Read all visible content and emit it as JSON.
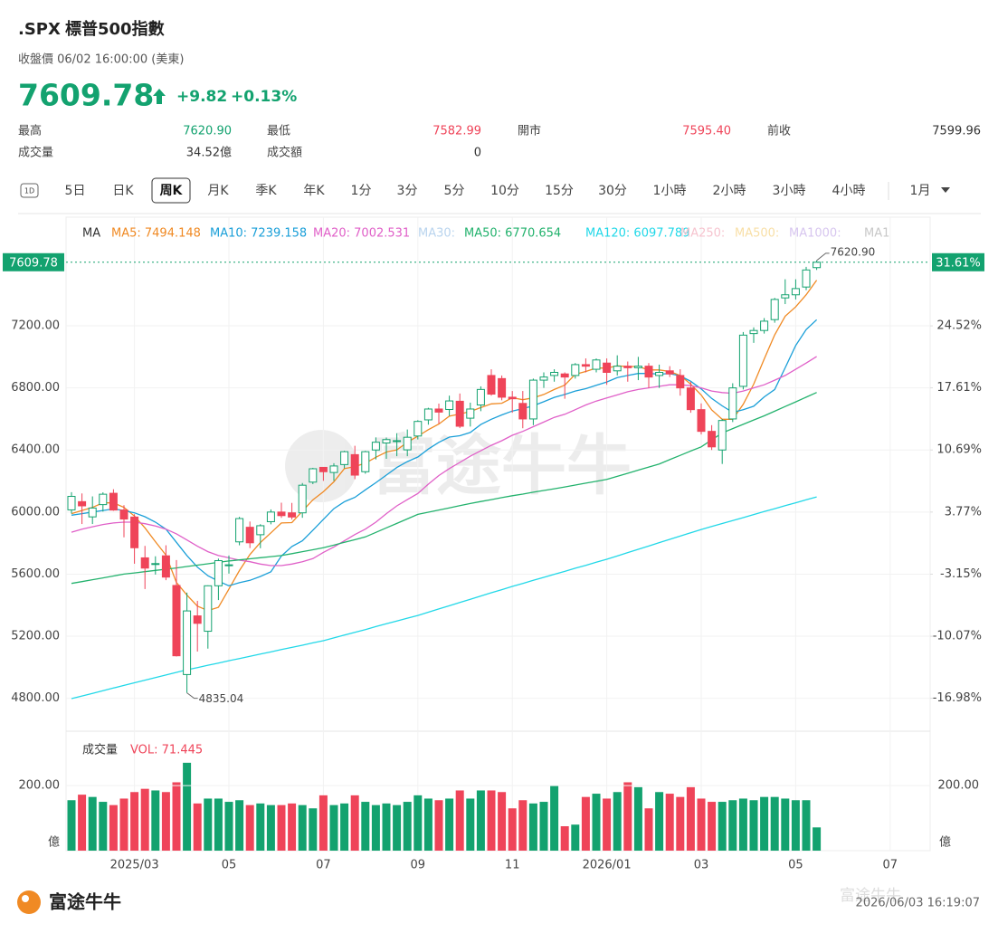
{
  "header": {
    "symbol": ".SPX",
    "name": "標普500指數",
    "status": "收盤價 06/02 16:00:00 (美東)",
    "price": "7609.78",
    "change": "+9.82",
    "change_pct": "+0.13%",
    "color": "#13a26f"
  },
  "stats": [
    {
      "label": "最高",
      "value": "7620.90",
      "color": "#13a26f"
    },
    {
      "label": "最低",
      "value": "7582.99",
      "color": "#ef4459"
    },
    {
      "label": "開市",
      "value": "7595.40",
      "color": "#ef4459"
    },
    {
      "label": "前收",
      "value": "7599.96",
      "color": "#333333"
    },
    {
      "label": "成交量",
      "value": "34.52億",
      "color": "#333333"
    },
    {
      "label": "成交額",
      "value": "0",
      "color": "#333333"
    }
  ],
  "tabs": {
    "icon": "1D",
    "items": [
      "5日",
      "日K",
      "周K",
      "月K",
      "季K",
      "年K",
      "1分",
      "3分",
      "5分",
      "10分",
      "15分",
      "30分",
      "1小時",
      "2小時",
      "3小時",
      "4小時",
      "1月"
    ],
    "selected": 2
  },
  "watermark": "富途牛牛",
  "footer": {
    "brand": "富途牛牛",
    "watermark": "富途牛牛",
    "timestamp": "2026/06/03 16:19:07"
  },
  "chart_data": [
    {
      "type": "candlestick",
      "legend_title": "MA",
      "up_color": "#13a26f",
      "down_color": "#ef4459",
      "categories": [
        null,
        null,
        null,
        null,
        null,
        null,
        "2025/03",
        null,
        null,
        null,
        null,
        null,
        null,
        null,
        null,
        "05",
        null,
        null,
        null,
        null,
        null,
        null,
        null,
        null,
        "07",
        null,
        null,
        null,
        null,
        null,
        null,
        null,
        null,
        "09",
        null,
        null,
        null,
        null,
        null,
        null,
        null,
        null,
        "11",
        null,
        null,
        null,
        null,
        null,
        null,
        null,
        null,
        "2026/01",
        null,
        null,
        null,
        null,
        null,
        null,
        null,
        null,
        "03",
        null,
        null,
        null,
        null,
        null,
        null,
        null,
        null,
        "05",
        null,
        null,
        null,
        null,
        null,
        null,
        null,
        null,
        "07"
      ],
      "open": [
        6014,
        6067,
        5969,
        6048,
        6121,
        6013,
        5968,
        5705,
        5664,
        5718,
        5527,
        4953,
        5331,
        5232,
        5525,
        5655,
        5808,
        5902,
        5854,
        5938,
        6000,
        5995,
        5995,
        6193,
        6288,
        6255,
        6306,
        6370,
        6260,
        6400,
        6445,
        6457,
        6401,
        6490,
        6594,
        6664,
        6661,
        6714,
        6605,
        6690,
        6880,
        6860,
        6740,
        6700,
        6600,
        6850,
        6880,
        6890,
        6880,
        6950,
        6920,
        6960,
        6910,
        6940,
        6930,
        6940,
        6880,
        6910,
        6880,
        6800,
        6660,
        6520,
        6400,
        6600,
        6810,
        7150,
        7170,
        7240,
        7380,
        7400,
        7450,
        7575,
        null,
        null,
        null,
        null,
        null,
        null,
        null
      ],
      "high": [
        6128,
        6120,
        6101,
        6127,
        6147,
        6044,
        5986,
        5782,
        5715,
        5786,
        5691,
        5481,
        5428,
        5528,
        5700,
        5720,
        5969,
        5939,
        5922,
        6017,
        6060,
        6059,
        6187,
        6285,
        6290,
        6315,
        6395,
        6427,
        6395,
        6481,
        6480,
        6508,
        6532,
        6592,
        6672,
        6699,
        6750,
        6764,
        6705,
        6810,
        6920,
        6880,
        6780,
        6780,
        6860,
        6900,
        6920,
        6900,
        6960,
        6990,
        6990,
        6990,
        7010,
        6970,
        7000,
        6960,
        6950,
        6940,
        6920,
        6840,
        6700,
        6560,
        6600,
        6830,
        7160,
        7190,
        7250,
        7380,
        7500,
        7500,
        7580,
        7620.9,
        null,
        null,
        null,
        null,
        null,
        null,
        null
      ],
      "low": [
        5990,
        5923,
        5923,
        6003,
        6008,
        5837,
        5667,
        5504,
        5597,
        5561,
        5069,
        4835.04,
        5101,
        5120,
        5433,
        5603,
        5786,
        5768,
        5767,
        5921,
        5963,
        5952,
        5963,
        6180,
        6201,
        6201,
        6282,
        6212,
        6247,
        6339,
        6343,
        6360,
        6360,
        6468,
        6563,
        6569,
        6620,
        6541,
        6551,
        6650,
        6750,
        6720,
        6640,
        6540,
        6560,
        6800,
        6840,
        6730,
        6860,
        6900,
        6900,
        6820,
        6880,
        6840,
        6850,
        6800,
        6800,
        6870,
        6750,
        6640,
        6500,
        6400,
        6310,
        6580,
        6790,
        7090,
        7150,
        7220,
        7340,
        7370,
        7430,
        7560,
        null,
        null,
        null,
        null,
        null,
        null,
        null
      ],
      "close": [
        6101,
        6040,
        6026,
        6115,
        6013,
        5955,
        5770,
        5639,
        5668,
        5581,
        5074,
        5363,
        5283,
        5525,
        5687,
        5660,
        5958,
        5802,
        5912,
        6000,
        5977,
        5968,
        6173,
        6279,
        6260,
        6297,
        6389,
        6238,
        6389,
        6450,
        6467,
        6460,
        6482,
        6584,
        6664,
        6644,
        6716,
        6553,
        6664,
        6790,
        6760,
        6740,
        6730,
        6600,
        6850,
        6870,
        6900,
        6870,
        6950,
        6940,
        6980,
        6900,
        6940,
        6930,
        6940,
        6870,
        6900,
        6890,
        6800,
        6660,
        6520,
        6420,
        6590,
        6800,
        7140,
        7170,
        7230,
        7370,
        7400,
        7440,
        7560,
        7609.78,
        null,
        null,
        null,
        null,
        null,
        null,
        null
      ],
      "max_label": "7620.90",
      "min_label": "4835.04",
      "last_price": {
        "value": 7609.78,
        "label": "7609.78"
      },
      "last_pct": {
        "value": 31.61,
        "label": "31.61%"
      },
      "last_color": "#13a26f",
      "ylim": [
        4588,
        7900
      ],
      "yticks": [
        {
          "value": 4800,
          "label": "4800.00"
        },
        {
          "value": 5200,
          "label": "5200.00"
        },
        {
          "value": 5600,
          "label": "5600.00"
        },
        {
          "value": 6000,
          "label": "6000.00"
        },
        {
          "value": 6400,
          "label": "6400.00"
        },
        {
          "value": 6800,
          "label": "6800.00"
        },
        {
          "value": 7200,
          "label": "7200.00"
        }
      ],
      "y2lim": [
        -20.65,
        36.63
      ],
      "y2ticks": [
        {
          "value": -16.98,
          "label": "-16.98%"
        },
        {
          "value": -10.07,
          "label": "-10.07%"
        },
        {
          "value": -3.15,
          "label": "-3.15%"
        },
        {
          "value": 3.77,
          "label": "3.77%"
        },
        {
          "value": 10.69,
          "label": "10.69%"
        },
        {
          "value": 17.61,
          "label": "17.61%"
        },
        {
          "value": 24.52,
          "label": "24.52%"
        }
      ],
      "grid": true,
      "series": [
        {
          "name": "MA5: 7494.148",
          "color": "#f08a24",
          "visible": true,
          "values": [
            5990,
            6010,
            6030,
            6060,
            6059,
            6030,
            5974,
            5898,
            5809,
            5723,
            5546,
            5465,
            5394,
            5365,
            5386,
            5504,
            5623,
            5726,
            5804,
            5866,
            5930,
            5932,
            6006,
            6079,
            6131,
            6195,
            6280,
            6293,
            6315,
            6353,
            6387,
            6401,
            6450,
            6489,
            6531,
            6567,
            6618,
            6632,
            6648,
            6673,
            6697,
            6701,
            6737,
            6724,
            6736,
            6758,
            6790,
            6818,
            6888,
            6906,
            6928,
            6928,
            6942,
            6938,
            6938,
            6916,
            6916,
            6906,
            6880,
            6824,
            6754,
            6658,
            6598,
            6598,
            6694,
            6824,
            6986,
            7142,
            7262,
            7322,
            7400,
            7494.148,
            null,
            null,
            null,
            null,
            null,
            null,
            null
          ]
        },
        {
          "name": "MA10: 7239.158",
          "color": "#1a9fd8",
          "visible": true,
          "values": [
            5980,
            5990,
            6000,
            6010,
            6020,
            6010,
            5995,
            5970,
            5935,
            5890,
            5805,
            5720,
            5645,
            5590,
            5555,
            5525,
            5545,
            5560,
            5585,
            5615,
            5717,
            5778,
            5815,
            5883,
            5953,
            6022,
            6067,
            6095,
            6143,
            6189,
            6238,
            6287,
            6325,
            6355,
            6406,
            6449,
            6483,
            6492,
            6513,
            6564,
            6598,
            6626,
            6651,
            6666,
            6685,
            6711,
            6739,
            6758,
            6780,
            6795,
            6817,
            6838,
            6866,
            6880,
            6893,
            6893,
            6889,
            6892,
            6877,
            6843,
            6793,
            6732,
            6684,
            6642,
            6659,
            6682,
            6742,
            6790,
            6930,
            7073,
            7176,
            7239.158,
            null,
            null,
            null,
            null,
            null,
            null,
            null
          ]
        },
        {
          "name": "MA20: 7002.531",
          "color": "#e060c8",
          "visible": true,
          "values": [
            5870,
            5890,
            5905,
            5920,
            5930,
            5935,
            5935,
            5925,
            5910,
            5890,
            5860,
            5820,
            5780,
            5745,
            5720,
            5705,
            5690,
            5680,
            5665,
            5655,
            5655,
            5665,
            5680,
            5700,
            5740,
            5775,
            5815,
            5855,
            5890,
            5935,
            5990,
            6040,
            6080,
            6120,
            6180,
            6235,
            6280,
            6320,
            6360,
            6395,
            6430,
            6460,
            6495,
            6520,
            6550,
            6580,
            6610,
            6630,
            6660,
            6690,
            6715,
            6735,
            6755,
            6775,
            6790,
            6800,
            6810,
            6820,
            6820,
            6815,
            6800,
            6780,
            6770,
            6765,
            6780,
            6800,
            6820,
            6850,
            6880,
            6920,
            6960,
            7002.531,
            null,
            null,
            null,
            null,
            null,
            null,
            null
          ]
        },
        {
          "name": "MA30:",
          "color": "#b9d4ee",
          "visible": false
        },
        {
          "name": "MA50: 6770.654",
          "color": "#23b26d",
          "visible": true,
          "values": [
            5540,
            5552,
            5564,
            5576,
            5588,
            5600,
            5608,
            5616,
            5624,
            5632,
            5640,
            5649,
            5658,
            5667,
            5676,
            5685,
            5692,
            5699,
            5706,
            5713,
            5720,
            5732,
            5745,
            5757,
            5770,
            5787,
            5805,
            5822,
            5840,
            5869,
            5898,
            5927,
            5956,
            5985,
            5999,
            6013,
            6027,
            6041,
            6055,
            6068,
            6080,
            6093,
            6105,
            6116,
            6128,
            6139,
            6150,
            6162,
            6174,
            6186,
            6198,
            6210,
            6230,
            6250,
            6270,
            6290,
            6310,
            6338,
            6365,
            6393,
            6420,
            6465,
            6510,
            6538,
            6565,
            6593,
            6620,
            6650,
            6680,
            6710,
            6740,
            6770.654,
            null,
            null,
            null,
            null,
            null,
            null,
            null
          ]
        },
        {
          "name": "MA120: 6097.789",
          "color": "#22d8e8",
          "visible": true,
          "values": [
            4798,
            4815,
            4832,
            4849,
            4866,
            4883,
            4900,
            4917,
            4934,
            4950,
            4967,
            4984,
            4998,
            5013,
            5027,
            5042,
            5056,
            5070,
            5085,
            5099,
            5114,
            5128,
            5142,
            5157,
            5171,
            5189,
            5207,
            5225,
            5243,
            5262,
            5280,
            5298,
            5316,
            5334,
            5355,
            5376,
            5396,
            5417,
            5438,
            5459,
            5480,
            5500,
            5521,
            5540,
            5560,
            5579,
            5599,
            5618,
            5638,
            5657,
            5677,
            5696,
            5717,
            5739,
            5760,
            5781,
            5803,
            5824,
            5845,
            5867,
            5888,
            5907,
            5926,
            5945,
            5964,
            5984,
            6003,
            6022,
            6041,
            6060,
            6079,
            6097.789,
            null,
            null,
            null,
            null,
            null,
            null,
            null
          ]
        },
        {
          "name": "MA250:",
          "color": "#f6c4cf",
          "visible": false
        },
        {
          "name": "MA500:",
          "color": "#f8dfa6",
          "visible": false
        },
        {
          "name": "MA1000:",
          "color": "#d7c6ef",
          "visible": false
        },
        {
          "name": "MA1",
          "color": "#c8c8c8",
          "visible": false
        }
      ]
    },
    {
      "type": "bar",
      "title": "成交量",
      "value_label": "VOL: 71.445",
      "value_label_color": "#ef4459",
      "y_unit": "億",
      "values": [
        155,
        172,
        165,
        150,
        140,
        160,
        180,
        190,
        185,
        180,
        210,
        270,
        145,
        160,
        160,
        150,
        155,
        140,
        145,
        140,
        140,
        145,
        140,
        130,
        170,
        140,
        145,
        170,
        150,
        140,
        145,
        140,
        150,
        170,
        160,
        155,
        160,
        185,
        160,
        185,
        185,
        180,
        130,
        155,
        145,
        150,
        200,
        75,
        80,
        165,
        175,
        160,
        180,
        210,
        195,
        130,
        180,
        175,
        165,
        195,
        160,
        150,
        150,
        155,
        160,
        155,
        165,
        165,
        160,
        155,
        155,
        71.445,
        null,
        null,
        null,
        null,
        null,
        null,
        null
      ],
      "ylim": [
        0,
        367
      ],
      "yticks": [
        {
          "value": 200,
          "label": "200.00"
        }
      ]
    }
  ]
}
